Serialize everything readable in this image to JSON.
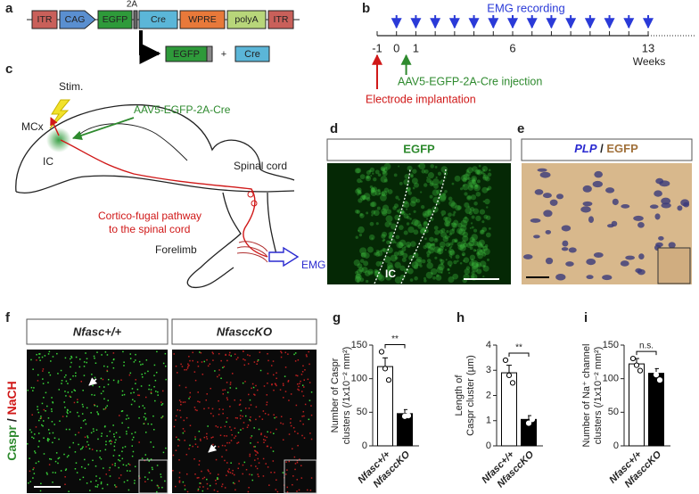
{
  "construct": {
    "label": "a",
    "elements": [
      "ITR",
      "CAG",
      "EGFP",
      "Cre",
      "WPRE",
      "polyA",
      "ITR"
    ],
    "linker": "2A",
    "products": [
      "EGFP",
      "+",
      "Cre"
    ]
  },
  "timeline": {
    "label": "b",
    "title": "EMG recording",
    "ticks": [
      -1,
      0,
      1,
      6,
      13
    ],
    "unit": "Weeks",
    "injection": "AAV5-EGFP-2A-Cre injection",
    "implantation": "Electrode implantation"
  },
  "schematic": {
    "label": "c",
    "stim": "Stim.",
    "virus": "AAV5-EGFP-2A-Cre",
    "cortex": "MCx",
    "capsule": "IC",
    "cord": "Spinal cord",
    "pathway": [
      "Cortico-fugal pathway",
      "to the spinal cord"
    ],
    "limb": "Forelimb",
    "emg": "EMG"
  },
  "micrograph_d": {
    "label": "d",
    "header": "EGFP",
    "region": "IC"
  },
  "micrograph_e": {
    "label": "e",
    "header": [
      "PLP",
      "/",
      "EGFP"
    ]
  },
  "micrograph_f": {
    "label": "f",
    "columns": [
      "Nfasc+/+",
      "NfasccKO"
    ],
    "stain": [
      "Caspr",
      "/",
      "NaCH"
    ]
  },
  "chart_data": [
    {
      "type": "bar",
      "label": "g",
      "ylabel": [
        "Number of Caspr",
        "clusters (/1x10⁻² mm²)"
      ],
      "categories": [
        "Nfasc+/+",
        "NfasccKO"
      ],
      "values": [
        118,
        48
      ],
      "errors": [
        13,
        6
      ],
      "points": [
        [
          140,
          115,
          98
        ],
        [
          55,
          44,
          45
        ]
      ],
      "colors": [
        "#ffffff",
        "#000000"
      ],
      "ylim": [
        0,
        150
      ],
      "yticks": [
        0,
        50,
        100,
        150
      ],
      "significance": "**"
    },
    {
      "type": "bar",
      "label": "h",
      "ylabel": [
        "Length of",
        "Caspr cluster (µm)"
      ],
      "categories": [
        "Nfasc+/+",
        "NfasccKO"
      ],
      "values": [
        2.9,
        1.05
      ],
      "errors": [
        0.3,
        0.15
      ],
      "points": [
        [
          3.4,
          2.8,
          2.5
        ],
        [
          1.2,
          0.9,
          1.05
        ]
      ],
      "colors": [
        "#ffffff",
        "#000000"
      ],
      "ylim": [
        0,
        4
      ],
      "yticks": [
        0,
        1,
        2,
        3,
        4
      ],
      "significance": "**"
    },
    {
      "type": "bar",
      "label": "i",
      "ylabel": [
        "Number of Na⁺ channel",
        "clusters (/1x10⁻² mm²)"
      ],
      "categories": [
        "Nfasc+/+",
        "NfasccKO"
      ],
      "values": [
        122,
        108
      ],
      "errors": [
        8,
        7
      ],
      "points": [
        [
          130,
          120,
          112
        ],
        [
          117,
          106,
          98
        ]
      ],
      "colors": [
        "#ffffff",
        "#000000"
      ],
      "ylim": [
        0,
        150
      ],
      "yticks": [
        0,
        50,
        100,
        150
      ],
      "significance": "n.s."
    }
  ]
}
